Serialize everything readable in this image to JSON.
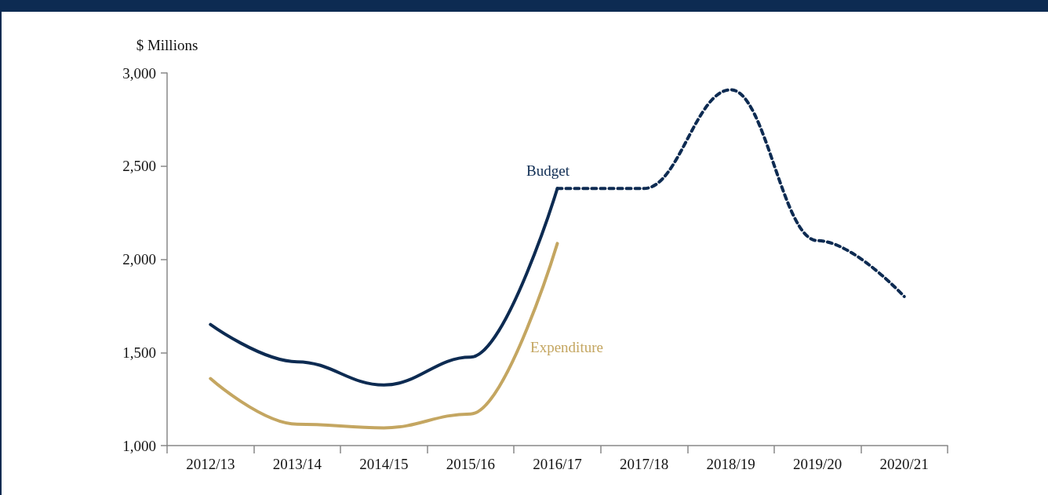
{
  "chart_data": {
    "type": "line",
    "ylabel": "$ Millions",
    "categories": [
      "2012/13",
      "2013/14",
      "2014/15",
      "2015/16",
      "2016/17",
      "2017/18",
      "2018/19",
      "2019/20",
      "2020/21"
    ],
    "series": [
      {
        "name": "Budget",
        "color": "#0d2b52",
        "line_style": "solid",
        "values": [
          1650,
          1450,
          1325,
          1475,
          2380,
          null,
          null,
          null,
          null
        ]
      },
      {
        "color": "#0d2b52",
        "line_style": "dashed",
        "values": [
          null,
          null,
          null,
          null,
          2380,
          2380,
          2910,
          2100,
          1800
        ]
      },
      {
        "name": "Expenditure",
        "color": "#c4a661",
        "line_style": "solid",
        "values": [
          1360,
          1115,
          1095,
          1170,
          2085,
          null,
          null,
          null,
          null
        ]
      }
    ],
    "ylim": [
      1000,
      3000
    ],
    "yticks": [
      {
        "value": 1000,
        "label": "1,000"
      },
      {
        "value": 1500,
        "label": "1,500"
      },
      {
        "value": 2000,
        "label": "2,000"
      },
      {
        "value": 2500,
        "label": "2,500"
      },
      {
        "value": 3000,
        "label": "3,000"
      }
    ],
    "grid": false,
    "legend": false,
    "marker": "none"
  }
}
